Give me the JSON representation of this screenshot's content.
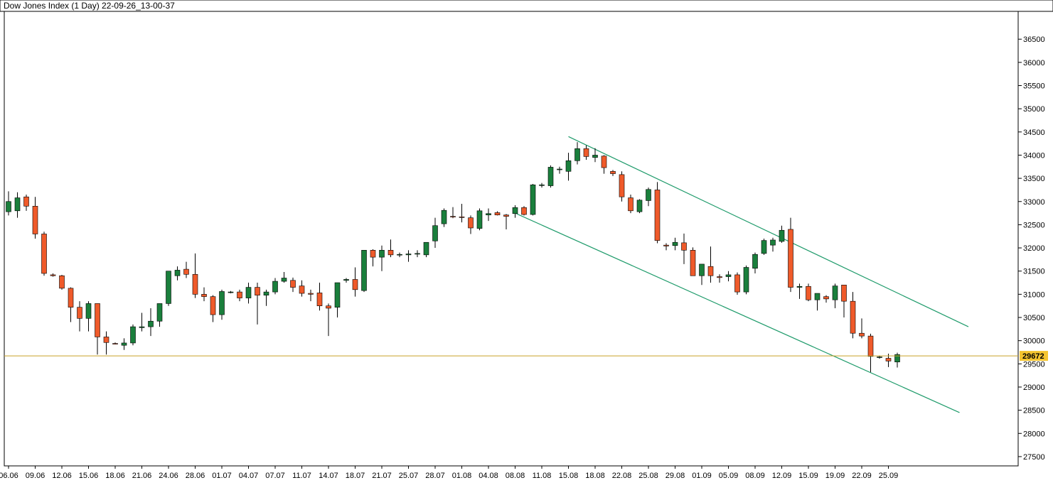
{
  "window": {
    "title": "Dow Jones Index (1 Day) 22-09-26_13-00-37"
  },
  "colors": {
    "up": "#1a7f3c",
    "down": "#ef5a2a",
    "wick": "#000000",
    "channel": "#1f9b6b",
    "price_line": "#c9a227",
    "price_tag": "#f4c430",
    "axis": "#000000"
  },
  "chart_data": {
    "type": "candlestick",
    "title": "Dow Jones Index (1 Day) 22-09-26_13-00-37",
    "xlabel": "",
    "ylabel": "",
    "ylim": [
      27300,
      37100
    ],
    "y_ticks": [
      27500,
      28000,
      28500,
      29000,
      29500,
      30000,
      30500,
      31000,
      31500,
      32000,
      32500,
      33000,
      33500,
      34000,
      34500,
      35000,
      35500,
      36000,
      36500
    ],
    "x_tick_labels": [
      {
        "label": "06.06",
        "index": 0
      },
      {
        "label": "09.06",
        "index": 3
      },
      {
        "label": "12.06",
        "index": 6
      },
      {
        "label": "15.06",
        "index": 9
      },
      {
        "label": "18.06",
        "index": 12
      },
      {
        "label": "21.06",
        "index": 15
      },
      {
        "label": "24.06",
        "index": 18
      },
      {
        "label": "28.06",
        "index": 21
      },
      {
        "label": "01.07",
        "index": 24
      },
      {
        "label": "04.07",
        "index": 27
      },
      {
        "label": "07.07",
        "index": 30
      },
      {
        "label": "11.07",
        "index": 33
      },
      {
        "label": "14.07",
        "index": 36
      },
      {
        "label": "18.07",
        "index": 39
      },
      {
        "label": "21.07",
        "index": 42
      },
      {
        "label": "25.07",
        "index": 45
      },
      {
        "label": "28.07",
        "index": 48
      },
      {
        "label": "01.08",
        "index": 51
      },
      {
        "label": "04.08",
        "index": 54
      },
      {
        "label": "08.08",
        "index": 57
      },
      {
        "label": "11.08",
        "index": 60
      },
      {
        "label": "15.08",
        "index": 63
      },
      {
        "label": "18.08",
        "index": 66
      },
      {
        "label": "22.08",
        "index": 69
      },
      {
        "label": "25.08",
        "index": 72
      },
      {
        "label": "29.08",
        "index": 75
      },
      {
        "label": "01.09",
        "index": 78
      },
      {
        "label": "05.09",
        "index": 81
      },
      {
        "label": "08.09",
        "index": 84
      },
      {
        "label": "12.09",
        "index": 87
      },
      {
        "label": "15.09",
        "index": 90
      },
      {
        "label": "19.09",
        "index": 93
      },
      {
        "label": "22.09",
        "index": 96
      },
      {
        "label": "25.09",
        "index": 99
      }
    ],
    "candles": [
      {
        "o": 32780,
        "h": 33220,
        "l": 32700,
        "c": 33000
      },
      {
        "o": 32800,
        "h": 33200,
        "l": 32650,
        "c": 33080
      },
      {
        "o": 33100,
        "h": 33150,
        "l": 32800,
        "c": 32900
      },
      {
        "o": 32900,
        "h": 33100,
        "l": 32200,
        "c": 32300
      },
      {
        "o": 32300,
        "h": 32350,
        "l": 31400,
        "c": 31450
      },
      {
        "o": 31420,
        "h": 31450,
        "l": 31380,
        "c": 31400
      },
      {
        "o": 31400,
        "h": 31420,
        "l": 31100,
        "c": 31130
      },
      {
        "o": 31130,
        "h": 31150,
        "l": 30400,
        "c": 30720
      },
      {
        "o": 30720,
        "h": 30850,
        "l": 30200,
        "c": 30480
      },
      {
        "o": 30480,
        "h": 30850,
        "l": 30200,
        "c": 30800
      },
      {
        "o": 30800,
        "h": 30800,
        "l": 29700,
        "c": 30080
      },
      {
        "o": 30080,
        "h": 30200,
        "l": 29700,
        "c": 29960
      },
      {
        "o": 29940,
        "h": 29960,
        "l": 29920,
        "c": 29930
      },
      {
        "o": 29900,
        "h": 30050,
        "l": 29800,
        "c": 29950
      },
      {
        "o": 29950,
        "h": 30350,
        "l": 29900,
        "c": 30300
      },
      {
        "o": 30280,
        "h": 30600,
        "l": 30200,
        "c": 30300
      },
      {
        "o": 30300,
        "h": 30700,
        "l": 30100,
        "c": 30420
      },
      {
        "o": 30420,
        "h": 30800,
        "l": 30300,
        "c": 30800
      },
      {
        "o": 30800,
        "h": 31500,
        "l": 30750,
        "c": 31500
      },
      {
        "o": 31400,
        "h": 31600,
        "l": 31300,
        "c": 31520
      },
      {
        "o": 31540,
        "h": 31700,
        "l": 31350,
        "c": 31430
      },
      {
        "o": 31430,
        "h": 31880,
        "l": 30920,
        "c": 31000
      },
      {
        "o": 31000,
        "h": 31150,
        "l": 30850,
        "c": 30950
      },
      {
        "o": 30950,
        "h": 30980,
        "l": 30400,
        "c": 30560
      },
      {
        "o": 30560,
        "h": 31100,
        "l": 30450,
        "c": 31060
      },
      {
        "o": 31040,
        "h": 31070,
        "l": 31020,
        "c": 31050
      },
      {
        "o": 31050,
        "h": 31100,
        "l": 30850,
        "c": 30920
      },
      {
        "o": 30920,
        "h": 31250,
        "l": 30800,
        "c": 31150
      },
      {
        "o": 31150,
        "h": 31250,
        "l": 30350,
        "c": 30980
      },
      {
        "o": 30980,
        "h": 31100,
        "l": 30750,
        "c": 31050
      },
      {
        "o": 31050,
        "h": 31350,
        "l": 31000,
        "c": 31280
      },
      {
        "o": 31280,
        "h": 31480,
        "l": 31250,
        "c": 31350
      },
      {
        "o": 31300,
        "h": 31360,
        "l": 31050,
        "c": 31150
      },
      {
        "o": 31180,
        "h": 31300,
        "l": 30950,
        "c": 31020
      },
      {
        "o": 31020,
        "h": 31100,
        "l": 30850,
        "c": 31000
      },
      {
        "o": 31030,
        "h": 31250,
        "l": 30650,
        "c": 30750
      },
      {
        "o": 30750,
        "h": 30800,
        "l": 30100,
        "c": 30700
      },
      {
        "o": 30720,
        "h": 31250,
        "l": 30500,
        "c": 31250
      },
      {
        "o": 31300,
        "h": 31350,
        "l": 31250,
        "c": 31320
      },
      {
        "o": 31320,
        "h": 31580,
        "l": 30950,
        "c": 31100
      },
      {
        "o": 31080,
        "h": 31950,
        "l": 31050,
        "c": 31950
      },
      {
        "o": 31950,
        "h": 31970,
        "l": 31600,
        "c": 31800
      },
      {
        "o": 31800,
        "h": 32050,
        "l": 31500,
        "c": 31950
      },
      {
        "o": 31950,
        "h": 32180,
        "l": 31800,
        "c": 31850
      },
      {
        "o": 31850,
        "h": 31900,
        "l": 31800,
        "c": 31860
      },
      {
        "o": 31850,
        "h": 31950,
        "l": 31700,
        "c": 31870
      },
      {
        "o": 31870,
        "h": 31950,
        "l": 31800,
        "c": 31880
      },
      {
        "o": 31850,
        "h": 32100,
        "l": 31800,
        "c": 32120
      },
      {
        "o": 32150,
        "h": 32650,
        "l": 32000,
        "c": 32480
      },
      {
        "o": 32520,
        "h": 32850,
        "l": 32450,
        "c": 32810
      },
      {
        "o": 32680,
        "h": 32880,
        "l": 32640,
        "c": 32670
      },
      {
        "o": 32670,
        "h": 32950,
        "l": 32550,
        "c": 32660
      },
      {
        "o": 32650,
        "h": 32700,
        "l": 32300,
        "c": 32430
      },
      {
        "o": 32420,
        "h": 32850,
        "l": 32380,
        "c": 32800
      },
      {
        "o": 32710,
        "h": 32850,
        "l": 32580,
        "c": 32740
      },
      {
        "o": 32760,
        "h": 32790,
        "l": 32700,
        "c": 32710
      },
      {
        "o": 32710,
        "h": 32730,
        "l": 32400,
        "c": 32680
      },
      {
        "o": 32740,
        "h": 32920,
        "l": 32650,
        "c": 32870
      },
      {
        "o": 32870,
        "h": 32900,
        "l": 32700,
        "c": 32720
      },
      {
        "o": 32720,
        "h": 33380,
        "l": 32700,
        "c": 33360
      },
      {
        "o": 33350,
        "h": 33400,
        "l": 33300,
        "c": 33360
      },
      {
        "o": 33340,
        "h": 33780,
        "l": 33300,
        "c": 33740
      },
      {
        "o": 33700,
        "h": 33750,
        "l": 33600,
        "c": 33700
      },
      {
        "o": 33650,
        "h": 34050,
        "l": 33450,
        "c": 33880
      },
      {
        "o": 33880,
        "h": 34280,
        "l": 33800,
        "c": 34140
      },
      {
        "o": 34140,
        "h": 34210,
        "l": 33900,
        "c": 33970
      },
      {
        "o": 33950,
        "h": 34150,
        "l": 33850,
        "c": 34000
      },
      {
        "o": 33980,
        "h": 34000,
        "l": 33600,
        "c": 33730
      },
      {
        "o": 33650,
        "h": 33680,
        "l": 33550,
        "c": 33600
      },
      {
        "o": 33580,
        "h": 33650,
        "l": 33000,
        "c": 33100
      },
      {
        "o": 33080,
        "h": 33150,
        "l": 32750,
        "c": 32800
      },
      {
        "o": 32780,
        "h": 33050,
        "l": 32750,
        "c": 33030
      },
      {
        "o": 33020,
        "h": 33300,
        "l": 32900,
        "c": 33260
      },
      {
        "o": 33250,
        "h": 33420,
        "l": 32100,
        "c": 32160
      },
      {
        "o": 32060,
        "h": 32100,
        "l": 31950,
        "c": 32040
      },
      {
        "o": 32050,
        "h": 32220,
        "l": 31950,
        "c": 32120
      },
      {
        "o": 32110,
        "h": 32310,
        "l": 31650,
        "c": 31950
      },
      {
        "o": 31950,
        "h": 32010,
        "l": 31400,
        "c": 31400
      },
      {
        "o": 31400,
        "h": 31650,
        "l": 31200,
        "c": 31650
      },
      {
        "o": 31600,
        "h": 32030,
        "l": 31250,
        "c": 31400
      },
      {
        "o": 31380,
        "h": 31430,
        "l": 31250,
        "c": 31360
      },
      {
        "o": 31380,
        "h": 31500,
        "l": 31280,
        "c": 31420
      },
      {
        "o": 31420,
        "h": 31470,
        "l": 30990,
        "c": 31050
      },
      {
        "o": 31050,
        "h": 31620,
        "l": 31000,
        "c": 31580
      },
      {
        "o": 31560,
        "h": 31900,
        "l": 31450,
        "c": 31860
      },
      {
        "o": 31880,
        "h": 32200,
        "l": 31850,
        "c": 32160
      },
      {
        "o": 32060,
        "h": 32220,
        "l": 31920,
        "c": 32170
      },
      {
        "o": 32140,
        "h": 32480,
        "l": 32110,
        "c": 32380
      },
      {
        "o": 32400,
        "h": 32650,
        "l": 31050,
        "c": 31150
      },
      {
        "o": 31150,
        "h": 31230,
        "l": 30900,
        "c": 31170
      },
      {
        "o": 31170,
        "h": 31230,
        "l": 30850,
        "c": 30880
      },
      {
        "o": 30880,
        "h": 31000,
        "l": 30650,
        "c": 31020
      },
      {
        "o": 30950,
        "h": 30980,
        "l": 30820,
        "c": 30900
      },
      {
        "o": 30880,
        "h": 31230,
        "l": 30700,
        "c": 31180
      },
      {
        "o": 31200,
        "h": 31200,
        "l": 30500,
        "c": 30850
      },
      {
        "o": 30850,
        "h": 31050,
        "l": 30050,
        "c": 30160
      },
      {
        "o": 30160,
        "h": 30480,
        "l": 30050,
        "c": 30100
      },
      {
        "o": 30100,
        "h": 30150,
        "l": 29320,
        "c": 29660
      },
      {
        "o": 29640,
        "h": 29680,
        "l": 29610,
        "c": 29650
      },
      {
        "o": 29620,
        "h": 29720,
        "l": 29430,
        "c": 29560
      },
      {
        "o": 29540,
        "h": 29740,
        "l": 29420,
        "c": 29700
      }
    ],
    "channel_lines": [
      {
        "from": {
          "index": 63,
          "value": 34400
        },
        "to": {
          "index": 108,
          "value": 30300
        }
      },
      {
        "from": {
          "index": 57,
          "value": 32750
        },
        "to": {
          "index": 107,
          "value": 28450
        }
      }
    ],
    "current_price": 29672
  }
}
